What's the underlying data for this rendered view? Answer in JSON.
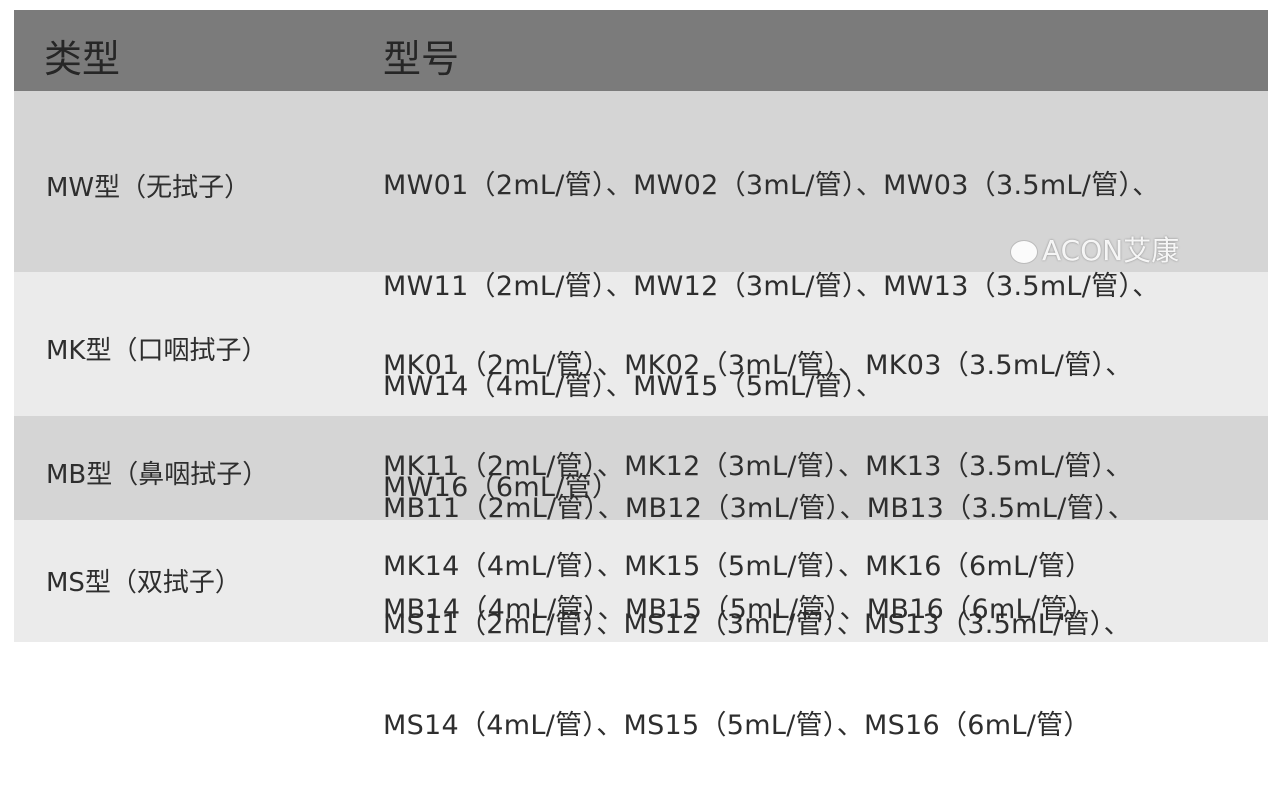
{
  "header": {
    "col_type": "类型",
    "col_model": "型号"
  },
  "rows": [
    {
      "type": "MW型（无拭子）",
      "lines": [
        "MW01（2mL/管）、MW02（3mL/管）、MW03（3.5mL/管）、",
        "MW11（2mL/管）、MW12（3mL/管）、MW13（3.5mL/管）、",
        "MW14（4mL/管）、MW15（5mL/管）、",
        "MW16（6mL/管）"
      ]
    },
    {
      "type": "MK型（口咽拭子）",
      "lines": [
        "MK01（2mL/管）、MK02（3mL/管）、MK03（3.5mL/管）、",
        "MK11（2mL/管）、MK12（3mL/管）、MK13（3.5mL/管）、",
        "MK14（4mL/管）、MK15（5mL/管）、MK16（6mL/管）"
      ]
    },
    {
      "type": "MB型（鼻咽拭子）",
      "lines": [
        "MB11（2mL/管）、MB12（3mL/管）、MB13（3.5mL/管）、",
        "MB14（4mL/管）、MB15（5mL/管）、MB16（6mL/管）"
      ]
    },
    {
      "type": "MS型（双拭子）",
      "lines": [
        "MS11（2mL/管）、MS12（3mL/管）、MS13（3.5mL/管）、",
        "MS14（4mL/管）、MS15（5mL/管）、MS16（6mL/管）"
      ]
    }
  ],
  "watermark": "ACON艾康"
}
